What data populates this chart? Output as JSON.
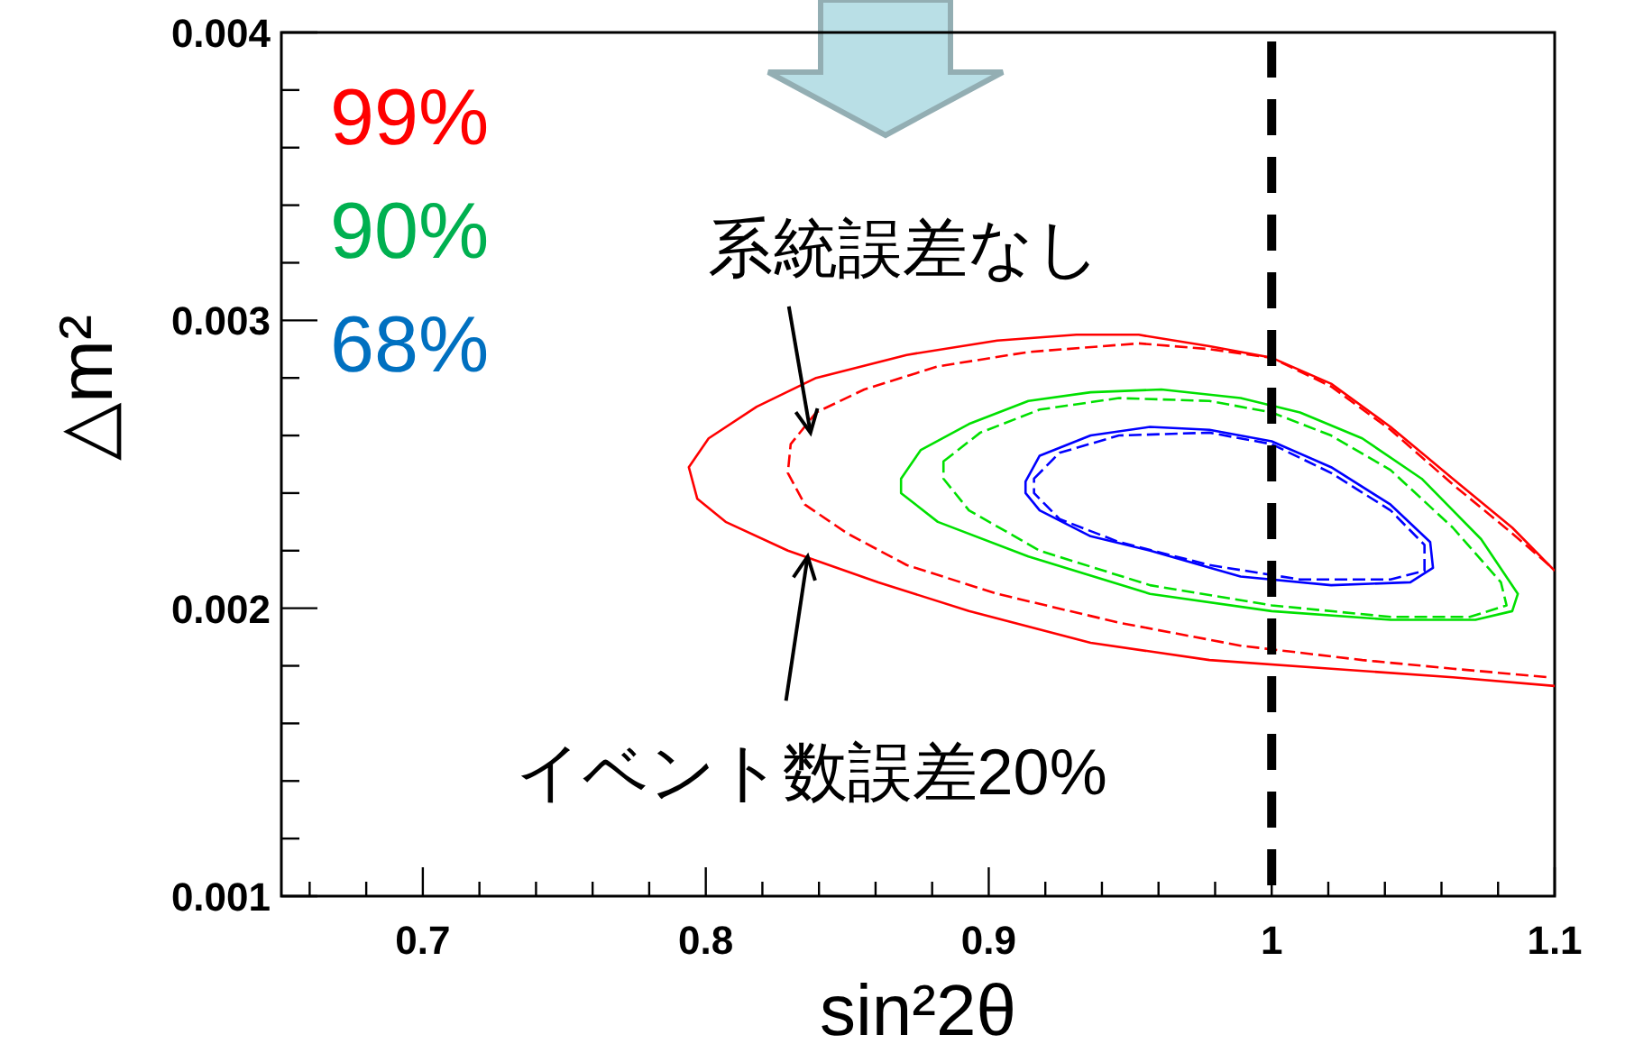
{
  "chart_data": {
    "type": "line",
    "xlabel": "sin²2θ",
    "ylabel": "△m²",
    "xlim": [
      0.65,
      1.1
    ],
    "ylim": [
      0.001,
      0.004
    ],
    "xticks": [
      {
        "value": 0.66,
        "label": null
      },
      {
        "value": 0.68,
        "label": null
      },
      0.7,
      {
        "value": 0.72,
        "label": null
      },
      {
        "value": 0.74,
        "label": null
      },
      {
        "value": 0.76,
        "label": null
      },
      {
        "value": 0.78,
        "label": null
      },
      0.8,
      {
        "value": 0.82,
        "label": null
      },
      {
        "value": 0.84,
        "label": null
      },
      {
        "value": 0.86,
        "label": null
      },
      {
        "value": 0.88,
        "label": null
      },
      0.9,
      {
        "value": 0.92,
        "label": null
      },
      {
        "value": 0.94,
        "label": null
      },
      {
        "value": 0.96,
        "label": null
      },
      {
        "value": 0.98,
        "label": null
      },
      1,
      {
        "value": 1.02,
        "label": null
      },
      {
        "value": 1.04,
        "label": null
      },
      {
        "value": 1.06,
        "label": null
      },
      {
        "value": 1.08,
        "label": null
      },
      1.1
    ],
    "yticks": [
      0.001,
      {
        "value": 0.0012,
        "label": null
      },
      {
        "value": 0.0014,
        "label": null
      },
      {
        "value": 0.0016,
        "label": null
      },
      {
        "value": 0.0018,
        "label": null
      },
      0.002,
      {
        "value": 0.0022,
        "label": null
      },
      {
        "value": 0.0024,
        "label": null
      },
      {
        "value": 0.0026,
        "label": null
      },
      {
        "value": 0.0028,
        "label": null
      },
      0.003,
      {
        "value": 0.0032,
        "label": null
      },
      {
        "value": 0.0034,
        "label": null
      },
      {
        "value": 0.0036,
        "label": null
      },
      {
        "value": 0.0038,
        "label": null
      },
      0.004
    ],
    "grid": false,
    "series": [
      {
        "color": "#ff0000",
        "line_style": "solid",
        "x": [
          1.1,
          1.085,
          1.064,
          1.042,
          1.021,
          1.0,
          0.978,
          0.953,
          0.931,
          0.903,
          0.871,
          0.839,
          0.818,
          0.801,
          0.794,
          0.797,
          0.807,
          0.829,
          0.861,
          0.893,
          0.936,
          0.978,
          1.021,
          1.064,
          1.1
        ],
        "values": [
          0.00213,
          0.00228,
          0.00245,
          0.00263,
          0.00278,
          0.00287,
          0.00291,
          0.00295,
          0.00295,
          0.00293,
          0.00288,
          0.0028,
          0.0027,
          0.00259,
          0.00249,
          0.00238,
          0.0023,
          0.0022,
          0.00209,
          0.00199,
          0.00188,
          0.00182,
          0.00179,
          0.00176,
          0.00173
        ]
      },
      {
        "color": "#ff0000",
        "line_style": "dashed",
        "x": [
          1.098,
          1.085,
          1.064,
          1.042,
          1.021,
          1.0,
          0.978,
          0.953,
          0.914,
          0.882,
          0.856,
          0.839,
          0.83,
          0.829,
          0.835,
          0.85,
          0.871,
          0.903,
          0.946,
          0.989,
          1.032,
          1.064,
          1.098
        ],
        "values": [
          0.00215,
          0.00226,
          0.00243,
          0.00262,
          0.00277,
          0.00287,
          0.0029,
          0.00292,
          0.00289,
          0.00284,
          0.00276,
          0.00268,
          0.00257,
          0.00247,
          0.00236,
          0.00226,
          0.00215,
          0.00205,
          0.00195,
          0.00187,
          0.00182,
          0.00179,
          0.00176
        ]
      }
    ],
    "ref_lines": [
      {
        "axis": "x",
        "value": 1,
        "label": null,
        "color": "#000000",
        "line_style": "dashed"
      }
    ],
    "annotations": [
      "99%",
      "90%",
      "68%",
      {
        "text": "系統誤差なし",
        "x": 0.837,
        "y": 0.00261
      },
      {
        "text": "イベント数誤差20%",
        "x": 0.836,
        "y": 0.00218
      }
    ]
  }
}
